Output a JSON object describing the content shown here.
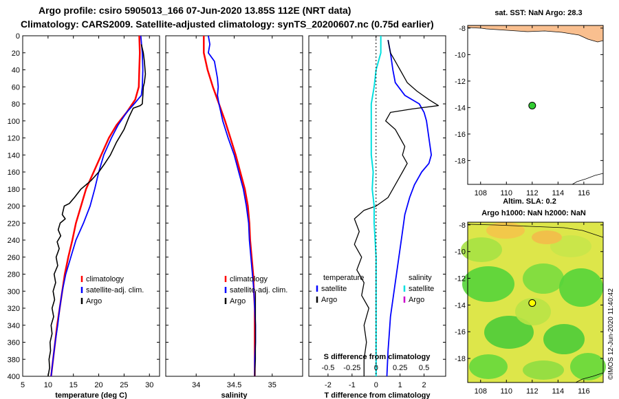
{
  "header": {
    "line1": "Argo profile: csiro 5905013_166 07-Jun-2020 13.85S 112E (NRT data)",
    "line2": "Climatology: CARS2009. Satellite-adjusted climatology: synTS_20200607.nc (0.75d earlier)"
  },
  "footer_stamp": "©IMOS 12-Jun-2020 11:40:42",
  "colors": {
    "climatology": "#ff0000",
    "satellite": "#0000ff",
    "argo": "#000000",
    "sat_salinity": "#00e0e0",
    "argo_salinity": "#cc00cc",
    "land": "#f9bf8f"
  },
  "chart_data": [
    {
      "type": "line",
      "name": "temperature-profile",
      "xlabel": "temperature (deg C)",
      "ylabel": "",
      "xlim": [
        5,
        32
      ],
      "ylim": [
        400,
        0
      ],
      "xticks": [
        5,
        10,
        15,
        20,
        25,
        30
      ],
      "yticks": [
        0,
        20,
        40,
        60,
        80,
        100,
        120,
        140,
        160,
        180,
        200,
        220,
        240,
        260,
        280,
        300,
        320,
        340,
        360,
        380,
        400
      ],
      "legend": [
        {
          "label": "climatology",
          "color": "#ff0000"
        },
        {
          "label": "satellite-adj. clim.",
          "color": "#0000ff"
        },
        {
          "label": "Argo",
          "color": "#000000"
        }
      ],
      "series": [
        {
          "name": "climatology",
          "color": "#ff0000",
          "width": 2.5,
          "points": [
            [
              28.0,
              0
            ],
            [
              28.1,
              20
            ],
            [
              28.0,
              40
            ],
            [
              27.9,
              60
            ],
            [
              27.2,
              75
            ],
            [
              25.5,
              90
            ],
            [
              23.5,
              105
            ],
            [
              22.0,
              120
            ],
            [
              20.5,
              140
            ],
            [
              19.0,
              160
            ],
            [
              17.5,
              180
            ],
            [
              16.5,
              200
            ],
            [
              15.5,
              220
            ],
            [
              14.8,
              240
            ],
            [
              14.0,
              260
            ],
            [
              13.3,
              280
            ],
            [
              12.8,
              300
            ],
            [
              12.3,
              320
            ],
            [
              11.8,
              340
            ],
            [
              11.4,
              360
            ],
            [
              11.0,
              380
            ],
            [
              10.6,
              400
            ]
          ]
        },
        {
          "name": "satellite-adj. clim.",
          "color": "#0000ff",
          "width": 1.8,
          "points": [
            [
              28.3,
              0
            ],
            [
              28.6,
              20
            ],
            [
              28.7,
              40
            ],
            [
              28.6,
              60
            ],
            [
              28.4,
              70
            ],
            [
              27.0,
              80
            ],
            [
              25.5,
              90
            ],
            [
              23.8,
              105
            ],
            [
              22.5,
              120
            ],
            [
              21.0,
              140
            ],
            [
              20.0,
              160
            ],
            [
              19.2,
              180
            ],
            [
              18.3,
              200
            ],
            [
              17.0,
              220
            ],
            [
              15.5,
              240
            ],
            [
              14.5,
              260
            ],
            [
              13.5,
              280
            ],
            [
              12.8,
              300
            ],
            [
              12.3,
              320
            ],
            [
              11.9,
              340
            ],
            [
              11.4,
              360
            ],
            [
              11.0,
              380
            ],
            [
              10.6,
              400
            ]
          ]
        },
        {
          "name": "Argo",
          "color": "#000000",
          "width": 1.6,
          "points": [
            [
              28.4,
              10
            ],
            [
              28.8,
              20
            ],
            [
              29.0,
              30
            ],
            [
              29.2,
              45
            ],
            [
              29.0,
              55
            ],
            [
              28.8,
              60
            ],
            [
              28.7,
              70
            ],
            [
              28.6,
              80
            ],
            [
              28.2,
              82
            ],
            [
              26.8,
              85
            ],
            [
              26.0,
              95
            ],
            [
              25.0,
              110
            ],
            [
              23.5,
              125
            ],
            [
              22.3,
              140
            ],
            [
              21.2,
              150
            ],
            [
              20.0,
              160
            ],
            [
              18.5,
              170
            ],
            [
              16.5,
              180
            ],
            [
              15.2,
              190
            ],
            [
              14.2,
              197
            ],
            [
              13.2,
              200
            ],
            [
              12.8,
              210
            ],
            [
              13.4,
              215
            ],
            [
              12.4,
              220
            ],
            [
              12.0,
              228
            ],
            [
              12.5,
              235
            ],
            [
              11.8,
              242
            ],
            [
              12.2,
              250
            ],
            [
              11.6,
              260
            ],
            [
              11.9,
              270
            ],
            [
              11.2,
              280
            ],
            [
              11.5,
              290
            ],
            [
              11.0,
              300
            ],
            [
              11.3,
              310
            ],
            [
              10.8,
              320
            ],
            [
              11.1,
              330
            ],
            [
              10.6,
              340
            ],
            [
              10.8,
              350
            ],
            [
              10.4,
              360
            ],
            [
              10.5,
              370
            ],
            [
              10.2,
              380
            ],
            [
              10.3,
              390
            ],
            [
              10.0,
              400
            ]
          ]
        }
      ]
    },
    {
      "type": "line",
      "name": "salinity-profile",
      "xlabel": "salinity",
      "ylabel": "",
      "xlim": [
        33.6,
        35.4
      ],
      "ylim": [
        400,
        0
      ],
      "xticks": [
        34,
        34.5,
        35
      ],
      "legend": [
        {
          "label": "climatology",
          "color": "#ff0000"
        },
        {
          "label": "satellite-adj. clim.",
          "color": "#0000ff"
        },
        {
          "label": "Argo",
          "color": "#000000"
        }
      ],
      "series": [
        {
          "name": "climatology",
          "color": "#ff0000",
          "width": 2.5,
          "points": [
            [
              34.1,
              0
            ],
            [
              34.1,
              20
            ],
            [
              34.15,
              40
            ],
            [
              34.22,
              60
            ],
            [
              34.3,
              80
            ],
            [
              34.38,
              100
            ],
            [
              34.45,
              120
            ],
            [
              34.52,
              140
            ],
            [
              34.58,
              160
            ],
            [
              34.64,
              180
            ],
            [
              34.68,
              200
            ],
            [
              34.7,
              220
            ],
            [
              34.71,
              240
            ],
            [
              34.73,
              260
            ],
            [
              34.75,
              280
            ],
            [
              34.76,
              300
            ],
            [
              34.77,
              320
            ],
            [
              34.77,
              340
            ],
            [
              34.77,
              360
            ],
            [
              34.77,
              380
            ],
            [
              34.77,
              400
            ]
          ]
        },
        {
          "name": "satellite-adj. clim.",
          "color": "#0000ff",
          "width": 1.8,
          "points": [
            [
              34.16,
              0
            ],
            [
              34.18,
              10
            ],
            [
              34.16,
              20
            ],
            [
              34.24,
              30
            ],
            [
              34.26,
              40
            ],
            [
              34.28,
              50
            ],
            [
              34.29,
              60
            ],
            [
              34.28,
              70
            ],
            [
              34.3,
              80
            ],
            [
              34.35,
              100
            ],
            [
              34.42,
              120
            ],
            [
              34.5,
              140
            ],
            [
              34.56,
              160
            ],
            [
              34.62,
              180
            ],
            [
              34.66,
              200
            ],
            [
              34.69,
              220
            ],
            [
              34.7,
              240
            ],
            [
              34.72,
              260
            ],
            [
              34.74,
              280
            ],
            [
              34.76,
              300
            ],
            [
              34.77,
              320
            ],
            [
              34.78,
              340
            ],
            [
              34.78,
              360
            ],
            [
              34.77,
              380
            ],
            [
              34.77,
              400
            ]
          ]
        },
        {
          "name": "Argo",
          "color": "#000000",
          "width": 1.2,
          "points": [
            [
              34.78,
              300
            ],
            [
              34.78,
              320
            ],
            [
              34.78,
              340
            ],
            [
              34.78,
              360
            ],
            [
              34.78,
              380
            ],
            [
              34.77,
              400
            ]
          ]
        }
      ]
    },
    {
      "type": "line",
      "name": "difference-profile",
      "xlabel": "T difference from climatology",
      "ylabel": "",
      "xlim": [
        -2.8,
        2.9
      ],
      "ylim": [
        400,
        0
      ],
      "xticks": [
        -2,
        -1,
        0,
        1,
        2
      ],
      "top_xlabel": "S difference from climatology",
      "top_xticks": [
        -0.5,
        -0.25,
        0,
        0.25,
        0.5
      ],
      "top_xlim": [
        -0.7,
        0.725
      ],
      "legend_t": [
        {
          "label": "temperature",
          "color": "#000000"
        },
        {
          "label": "satellite",
          "color": "#0000ff"
        },
        {
          "label": "Argo",
          "color": "#000000"
        }
      ],
      "legend_s": [
        {
          "label": "salinity",
          "color": "#000000"
        },
        {
          "label": "satellite",
          "color": "#00e0e0"
        },
        {
          "label": "Argo",
          "color": "#cc00cc"
        }
      ],
      "series": [
        {
          "name": "T satellite",
          "color": "#0000ff",
          "width": 1.8,
          "points": [
            [
              0.5,
              5
            ],
            [
              0.6,
              20
            ],
            [
              0.7,
              40
            ],
            [
              0.8,
              55
            ],
            [
              1.2,
              70
            ],
            [
              1.8,
              80
            ],
            [
              2.0,
              90
            ],
            [
              2.1,
              100
            ],
            [
              2.2,
              120
            ],
            [
              2.3,
              140
            ],
            [
              2.2,
              150
            ],
            [
              1.9,
              160
            ],
            [
              1.6,
              175
            ],
            [
              1.4,
              190
            ],
            [
              1.2,
              210
            ],
            [
              1.1,
              230
            ],
            [
              1.0,
              250
            ],
            [
              0.9,
              270
            ],
            [
              0.8,
              290
            ],
            [
              0.7,
              310
            ],
            [
              0.6,
              330
            ],
            [
              0.55,
              350
            ],
            [
              0.5,
              370
            ],
            [
              0.45,
              400
            ]
          ]
        },
        {
          "name": "T Argo",
          "color": "#000000",
          "width": 1.3,
          "points": [
            [
              0.5,
              5
            ],
            [
              0.6,
              20
            ],
            [
              0.8,
              30
            ],
            [
              1.0,
              40
            ],
            [
              1.3,
              55
            ],
            [
              1.7,
              65
            ],
            [
              2.2,
              75
            ],
            [
              2.6,
              82
            ],
            [
              1.5,
              86
            ],
            [
              0.6,
              90
            ],
            [
              0.4,
              100
            ],
            [
              0.8,
              110
            ],
            [
              1.0,
              120
            ],
            [
              1.2,
              130
            ],
            [
              1.1,
              140
            ],
            [
              1.3,
              150
            ],
            [
              1.1,
              160
            ],
            [
              0.8,
              175
            ],
            [
              0.5,
              190
            ],
            [
              0.0,
              200
            ],
            [
              -0.5,
              205
            ],
            [
              -0.9,
              215
            ],
            [
              -0.7,
              230
            ],
            [
              -0.9,
              245
            ],
            [
              -0.6,
              260
            ],
            [
              -0.8,
              275
            ],
            [
              -0.5,
              290
            ],
            [
              -0.6,
              305
            ],
            [
              -0.3,
              320
            ],
            [
              -0.5,
              340
            ],
            [
              -0.4,
              360
            ],
            [
              -0.5,
              380
            ],
            [
              -0.5,
              400
            ]
          ]
        },
        {
          "name": "S satellite",
          "color": "#00e0e0",
          "width": 2.0,
          "points": [
            [
              0.05,
              0
            ],
            [
              0.05,
              20
            ],
            [
              0.0,
              40
            ],
            [
              -0.02,
              60
            ],
            [
              -0.05,
              80
            ],
            [
              -0.05,
              100
            ],
            [
              -0.05,
              120
            ],
            [
              -0.05,
              140
            ],
            [
              -0.03,
              160
            ],
            [
              -0.04,
              180
            ],
            [
              -0.02,
              200
            ],
            [
              -0.02,
              220
            ],
            [
              -0.01,
              240
            ],
            [
              0.0,
              260
            ],
            [
              0.0,
              280
            ],
            [
              0.0,
              300
            ],
            [
              0.0,
              320
            ],
            [
              0.0,
              340
            ],
            [
              0.0,
              360
            ],
            [
              0.0,
              380
            ],
            [
              0.0,
              400
            ]
          ]
        }
      ]
    },
    {
      "type": "scatter",
      "name": "sst-map",
      "title": "sat. SST: NaN Argo: 28.3",
      "xlim": [
        107,
        117.5
      ],
      "ylim": [
        -19.8,
        -7.8
      ],
      "xticks": [
        108,
        110,
        112,
        114,
        116
      ],
      "yticks": [
        -8,
        -10,
        -12,
        -14,
        -16,
        -18
      ],
      "points": [
        {
          "x": 112,
          "y": -13.85,
          "color": "#33cc33"
        }
      ]
    },
    {
      "type": "heatmap",
      "name": "altimetry-map",
      "title1": "Altim. SLA: 0.2",
      "title2": "Argo h1000: NaN h2000: NaN",
      "xlim": [
        107,
        117.5
      ],
      "ylim": [
        -19.8,
        -7.8
      ],
      "xticks": [
        108,
        110,
        112,
        114,
        116
      ],
      "yticks": [
        -8,
        -10,
        -12,
        -14,
        -16,
        -18
      ],
      "points": [
        {
          "x": 112,
          "y": -13.85,
          "color": "#ffff00"
        }
      ]
    }
  ]
}
